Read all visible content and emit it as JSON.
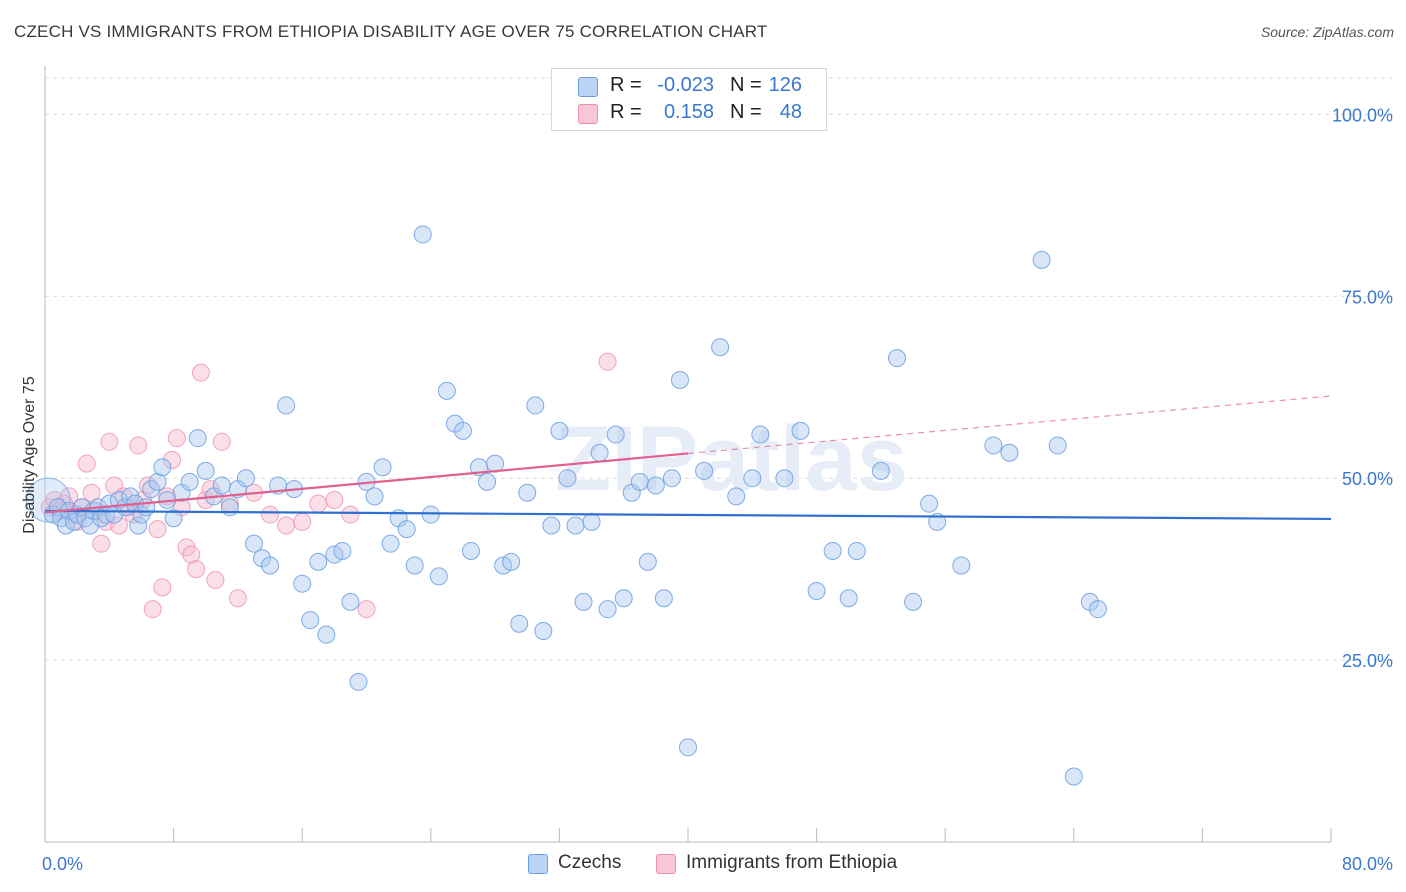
{
  "header": {
    "title": "CZECH VS IMMIGRANTS FROM ETHIOPIA DISABILITY AGE OVER 75 CORRELATION CHART",
    "source": "Source: ZipAtlas.com"
  },
  "legend": {
    "rows": [
      {
        "r_label": "R =",
        "r_value": "-0.023",
        "n_label": "N =",
        "n_value": "126"
      },
      {
        "r_label": "R =",
        "r_value": "0.158",
        "n_label": "N =",
        "n_value": "48"
      }
    ],
    "bottom": [
      {
        "label": "Czechs"
      },
      {
        "label": "Immigrants from Ethiopia"
      }
    ]
  },
  "watermark": "ZIPatlas",
  "colors": {
    "blue_fill": "#a9c8f0",
    "blue_stroke": "#6a9fe0",
    "blue_line": "#2f6fd0",
    "pink_fill": "#f7b8cc",
    "pink_stroke": "#ee8fb0",
    "pink_line": "#e0608f",
    "axis_label": "#3a78d0",
    "grid": "#dcdcdc"
  },
  "chart_data": {
    "type": "scatter",
    "title": "CZECH VS IMMIGRANTS FROM ETHIOPIA DISABILITY AGE OVER 75 CORRELATION CHART",
    "xlabel": "",
    "ylabel": "Disability Age Over 75",
    "xlim": [
      0,
      80
    ],
    "ylim": [
      0,
      105
    ],
    "x_tick_labels": [
      "0.0%",
      "80.0%"
    ],
    "y_ticks": [
      25,
      50,
      75,
      100
    ],
    "y_tick_labels": [
      "25.0%",
      "50.0%",
      "75.0%",
      "100.0%"
    ],
    "series": [
      {
        "name": "Czechs",
        "color": "blue",
        "trend": {
          "x0": 0,
          "y0": 45.5,
          "x1": 80,
          "y1": 44.4
        },
        "points": [
          [
            0.5,
            45
          ],
          [
            0.8,
            46
          ],
          [
            1,
            44.5
          ],
          [
            1.3,
            43.5
          ],
          [
            1.5,
            45.5
          ],
          [
            1.8,
            44
          ],
          [
            2,
            45
          ],
          [
            2.3,
            46
          ],
          [
            2.5,
            44.5
          ],
          [
            2.8,
            43.5
          ],
          [
            3,
            45.5
          ],
          [
            3.3,
            46
          ],
          [
            3.5,
            44.5
          ],
          [
            3.8,
            45
          ],
          [
            4,
            46.5
          ],
          [
            4.3,
            45
          ],
          [
            4.6,
            47
          ],
          [
            5,
            46
          ],
          [
            5.3,
            47.5
          ],
          [
            5.6,
            46.5
          ],
          [
            5.8,
            43.5
          ],
          [
            6,
            45
          ],
          [
            6.3,
            46
          ],
          [
            6.6,
            48.5
          ],
          [
            7,
            49.5
          ],
          [
            7.3,
            51.5
          ],
          [
            7.6,
            47
          ],
          [
            8,
            44.5
          ],
          [
            8.5,
            48
          ],
          [
            9,
            49.5
          ],
          [
            9.5,
            55.5
          ],
          [
            10,
            51
          ],
          [
            10.5,
            47.5
          ],
          [
            11,
            49
          ],
          [
            11.5,
            46
          ],
          [
            12,
            48.5
          ],
          [
            12.5,
            50
          ],
          [
            13,
            41
          ],
          [
            13.5,
            39
          ],
          [
            14,
            38
          ],
          [
            14.5,
            49
          ],
          [
            15,
            60
          ],
          [
            15.5,
            48.5
          ],
          [
            16,
            35.5
          ],
          [
            16.5,
            30.5
          ],
          [
            17,
            38.5
          ],
          [
            17.5,
            28.5
          ],
          [
            18,
            39.5
          ],
          [
            18.5,
            40
          ],
          [
            19,
            33
          ],
          [
            19.5,
            22
          ],
          [
            20,
            49.5
          ],
          [
            20.5,
            47.5
          ],
          [
            21,
            51.5
          ],
          [
            21.5,
            41
          ],
          [
            22,
            44.5
          ],
          [
            22.5,
            43
          ],
          [
            23,
            38
          ],
          [
            23.5,
            83.5
          ],
          [
            24,
            45
          ],
          [
            24.5,
            36.5
          ],
          [
            25,
            62
          ],
          [
            25.5,
            57.5
          ],
          [
            26,
            56.5
          ],
          [
            26.5,
            40
          ],
          [
            27,
            51.5
          ],
          [
            27.5,
            49.5
          ],
          [
            28,
            52
          ],
          [
            28.5,
            38
          ],
          [
            29,
            38.5
          ],
          [
            29.5,
            30
          ],
          [
            30,
            48
          ],
          [
            30.5,
            60
          ],
          [
            31,
            29
          ],
          [
            31.5,
            43.5
          ],
          [
            32,
            56.5
          ],
          [
            32.5,
            50
          ],
          [
            33,
            43.5
          ],
          [
            33.5,
            33
          ],
          [
            34,
            44
          ],
          [
            34.5,
            53.5
          ],
          [
            35,
            32
          ],
          [
            35.5,
            56
          ],
          [
            36,
            33.5
          ],
          [
            36.5,
            48
          ],
          [
            37,
            49.5
          ],
          [
            37.5,
            38.5
          ],
          [
            38,
            49
          ],
          [
            38.5,
            33.5
          ],
          [
            39,
            50
          ],
          [
            39.5,
            63.5
          ],
          [
            40,
            13
          ],
          [
            41,
            51
          ],
          [
            42,
            68
          ],
          [
            43,
            47.5
          ],
          [
            44,
            50
          ],
          [
            44.5,
            56
          ],
          [
            46,
            50
          ],
          [
            47,
            56.5
          ],
          [
            48,
            34.5
          ],
          [
            49,
            40
          ],
          [
            50,
            33.5
          ],
          [
            50.5,
            40
          ],
          [
            52,
            51
          ],
          [
            53,
            66.5
          ],
          [
            54,
            33
          ],
          [
            55,
            46.5
          ],
          [
            55.5,
            44
          ],
          [
            57,
            38
          ],
          [
            59,
            54.5
          ],
          [
            60,
            53.5
          ],
          [
            62,
            80
          ],
          [
            63,
            54.5
          ],
          [
            64,
            9
          ],
          [
            65,
            33
          ],
          [
            65.5,
            32
          ]
        ]
      },
      {
        "name": "Immigrants from Ethiopia",
        "color": "pink",
        "trend": {
          "x0": 0,
          "y0": 45.3,
          "x1": 40,
          "y1": 53.4
        },
        "trend_dashed": {
          "x0": 40,
          "y0": 53.4,
          "x1": 80,
          "y1": 61.3
        },
        "points": [
          [
            0.3,
            46
          ],
          [
            0.6,
            47
          ],
          [
            0.9,
            45.5
          ],
          [
            1.2,
            46.5
          ],
          [
            1.5,
            47.5
          ],
          [
            1.8,
            45
          ],
          [
            2,
            44
          ],
          [
            2.3,
            46
          ],
          [
            2.6,
            52
          ],
          [
            2.9,
            48
          ],
          [
            3.2,
            45.5
          ],
          [
            3.5,
            41
          ],
          [
            3.8,
            44
          ],
          [
            4,
            55
          ],
          [
            4.3,
            49
          ],
          [
            4.6,
            43.5
          ],
          [
            4.9,
            47.5
          ],
          [
            5.2,
            46
          ],
          [
            5.5,
            45
          ],
          [
            5.8,
            54.5
          ],
          [
            6.1,
            47
          ],
          [
            6.4,
            49
          ],
          [
            6.7,
            32
          ],
          [
            7,
            43
          ],
          [
            7.3,
            35
          ],
          [
            7.6,
            47.5
          ],
          [
            7.9,
            52.5
          ],
          [
            8.2,
            55.5
          ],
          [
            8.5,
            46
          ],
          [
            8.8,
            40.5
          ],
          [
            9.1,
            39.5
          ],
          [
            9.4,
            37.5
          ],
          [
            9.7,
            64.5
          ],
          [
            10,
            47
          ],
          [
            10.3,
            48.5
          ],
          [
            10.6,
            36
          ],
          [
            11,
            55
          ],
          [
            11.5,
            46.5
          ],
          [
            12,
            33.5
          ],
          [
            13,
            48
          ],
          [
            14,
            45
          ],
          [
            15,
            43.5
          ],
          [
            16,
            44
          ],
          [
            17,
            46.5
          ],
          [
            18,
            47
          ],
          [
            19,
            45
          ],
          [
            20,
            32
          ],
          [
            35,
            66
          ]
        ]
      }
    ]
  }
}
